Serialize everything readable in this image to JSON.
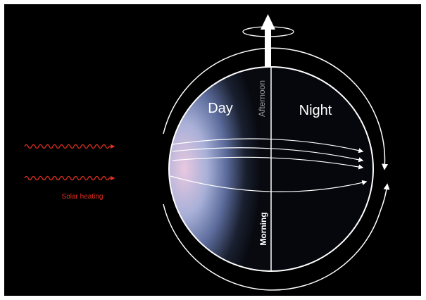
{
  "labels": {
    "day": "Day",
    "night": "Night",
    "afternoon": "Afternoon",
    "morning": "Morning",
    "solar_heating": "Solar heating"
  }
}
